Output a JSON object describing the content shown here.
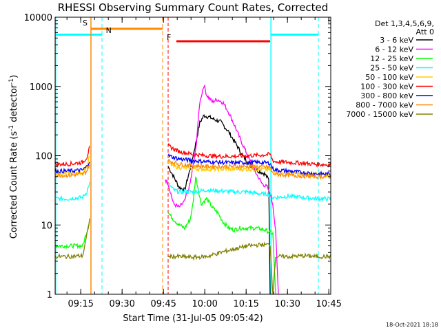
{
  "chart_data": {
    "type": "line",
    "title": "RHESSI Observing Summary Count Rates, Corrected",
    "xlabel": "Start Time (31-Jul-05 09:05:42)",
    "ylabel_main": "Corrected Count Rate (s",
    "ylabel_sup1": "-1",
    "ylabel_mid": " detector",
    "ylabel_sup2": "-1",
    "ylabel_end": ")",
    "x_range_minutes": [
      0,
      100
    ],
    "y_scale": "log",
    "ylim": [
      1,
      10000
    ],
    "x_ticks": [
      {
        "label": "09:15",
        "minutes": 9.3
      },
      {
        "label": "09:30",
        "minutes": 24.3
      },
      {
        "label": "09:45",
        "minutes": 39.3
      },
      {
        "label": "10:00",
        "minutes": 54.3
      },
      {
        "label": "10:15",
        "minutes": 69.3
      },
      {
        "label": "10:30",
        "minutes": 84.3
      },
      {
        "label": "10:45",
        "minutes": 99.3
      }
    ],
    "y_ticks": [
      {
        "label": "1",
        "value": 1
      },
      {
        "label": "10",
        "value": 10
      },
      {
        "label": "100",
        "value": 100
      },
      {
        "label": "1000",
        "value": 1000
      },
      {
        "label": "10000",
        "value": 10000
      }
    ],
    "legend": {
      "header1": "Det 1,3,4,5,6,9,",
      "header2": "Att 0",
      "placement": "right"
    },
    "series": [
      {
        "name": "3 - 6 keV",
        "color": "#000000",
        "x": [
          0,
          5,
          10,
          11.5,
          12.5,
          40,
          41,
          43,
          45,
          47,
          49,
          51,
          52.5,
          54,
          56,
          58,
          60,
          63,
          66,
          68,
          70,
          72,
          74,
          76,
          77.5,
          78,
          79,
          100
        ],
        "y": [
          null,
          null,
          null,
          null,
          null,
          null,
          70,
          50,
          35,
          32,
          65,
          150,
          300,
          380,
          360,
          330,
          310,
          220,
          140,
          100,
          80,
          65,
          60,
          55,
          45,
          1,
          null,
          null
        ]
      },
      {
        "name": "6 - 12 keV",
        "color": "#ff00ff",
        "x": [
          40,
          41,
          43,
          45,
          47,
          49,
          51,
          52.5,
          54,
          55,
          57,
          59,
          61,
          63,
          65,
          67,
          69,
          71,
          73,
          75,
          77,
          78,
          79,
          80,
          81,
          100
        ],
        "y": [
          45,
          40,
          20,
          18,
          22,
          40,
          120,
          600,
          1050,
          750,
          600,
          650,
          580,
          420,
          280,
          180,
          120,
          80,
          55,
          40,
          35,
          28,
          20,
          8,
          1,
          null
        ]
      },
      {
        "name": "12 - 25 keV",
        "color": "#00ff00",
        "x": [
          0,
          5,
          10,
          11.5,
          12.5,
          40,
          41,
          43,
          45,
          47,
          49,
          50,
          51,
          52,
          53,
          55,
          57,
          59,
          61,
          63,
          65,
          67,
          70,
          73,
          76,
          79,
          80,
          81,
          100
        ],
        "y": [
          5,
          5,
          5,
          8,
          12,
          null,
          15,
          12,
          10,
          9,
          12,
          20,
          50,
          32,
          20,
          24,
          18,
          15,
          11,
          9,
          8.5,
          9,
          9,
          9,
          8.5,
          7.5,
          1,
          null,
          null
        ]
      },
      {
        "name": "25 - 50 keV",
        "color": "#00ffff",
        "x": [
          0,
          5,
          10,
          11.5,
          12.5,
          40,
          41,
          43,
          45,
          50,
          55,
          60,
          65,
          70,
          75,
          78,
          79,
          80,
          85,
          90,
          95,
          100
        ],
        "y": [
          24,
          24,
          25,
          30,
          40,
          null,
          40,
          32,
          30,
          30,
          32,
          31,
          30,
          30,
          28,
          28,
          25,
          25,
          26,
          25,
          24,
          24
        ]
      },
      {
        "name": "50 - 100 keV",
        "color": "#ffcc00",
        "x": [
          0,
          5,
          10,
          11.5,
          12.5,
          40,
          41,
          43,
          45,
          50,
          55,
          60,
          65,
          70,
          75,
          78,
          79,
          80,
          85,
          90,
          95,
          100
        ],
        "y": [
          55,
          55,
          57,
          70,
          100,
          null,
          80,
          70,
          68,
          65,
          64,
          64,
          64,
          64,
          64,
          63,
          62,
          58,
          56,
          54,
          53,
          52
        ]
      },
      {
        "name": "100 - 300 keV",
        "color": "#ff0000",
        "x": [
          0,
          5,
          10,
          11.5,
          12.5,
          40,
          41,
          43,
          45,
          50,
          55,
          60,
          65,
          70,
          75,
          78,
          79,
          80,
          85,
          90,
          95,
          100
        ],
        "y": [
          75,
          76,
          80,
          95,
          130,
          null,
          140,
          125,
          115,
          105,
          100,
          98,
          98,
          100,
          102,
          105,
          85,
          82,
          80,
          78,
          75,
          74
        ]
      },
      {
        "name": "300 - 800 keV",
        "color": "#0000ff",
        "x": [
          0,
          5,
          10,
          11.5,
          12.5,
          40,
          41,
          43,
          45,
          50,
          55,
          60,
          65,
          70,
          75,
          78,
          79,
          80,
          85,
          90,
          95,
          100
        ],
        "y": [
          60,
          60,
          62,
          70,
          85,
          null,
          100,
          95,
          90,
          85,
          82,
          80,
          79,
          80,
          80,
          78,
          65,
          62,
          60,
          57,
          55,
          54
        ]
      },
      {
        "name": "800 - 7000 keV",
        "color": "#ff8800",
        "x": [
          0,
          5,
          10,
          11.5,
          12.5,
          40,
          41,
          43,
          45,
          50,
          55,
          60,
          65,
          70,
          75,
          78,
          79,
          80,
          85,
          90,
          95,
          100
        ],
        "y": [
          52,
          52,
          54,
          60,
          75,
          null,
          85,
          80,
          76,
          72,
          70,
          70,
          70,
          70,
          69,
          68,
          55,
          54,
          52,
          51,
          50,
          50
        ]
      },
      {
        "name": "7000 - 15000 keV",
        "color": "#808000",
        "x": [
          0,
          5,
          10,
          11.5,
          12.5,
          40,
          41,
          45,
          50,
          55,
          60,
          65,
          70,
          75,
          78,
          79,
          80,
          85,
          90,
          95,
          100
        ],
        "y": [
          3.5,
          3.5,
          3.6,
          7,
          12,
          null,
          3.5,
          3.5,
          3.4,
          3.5,
          4,
          4.5,
          5,
          5.2,
          5.2,
          1,
          3.5,
          3.5,
          3.6,
          3.5,
          3.5
        ]
      }
    ],
    "annotations": {
      "S_label": "S",
      "N_label": "N",
      "F_label": "F"
    }
  },
  "footer_date": "18-Oct-2021 18:18"
}
